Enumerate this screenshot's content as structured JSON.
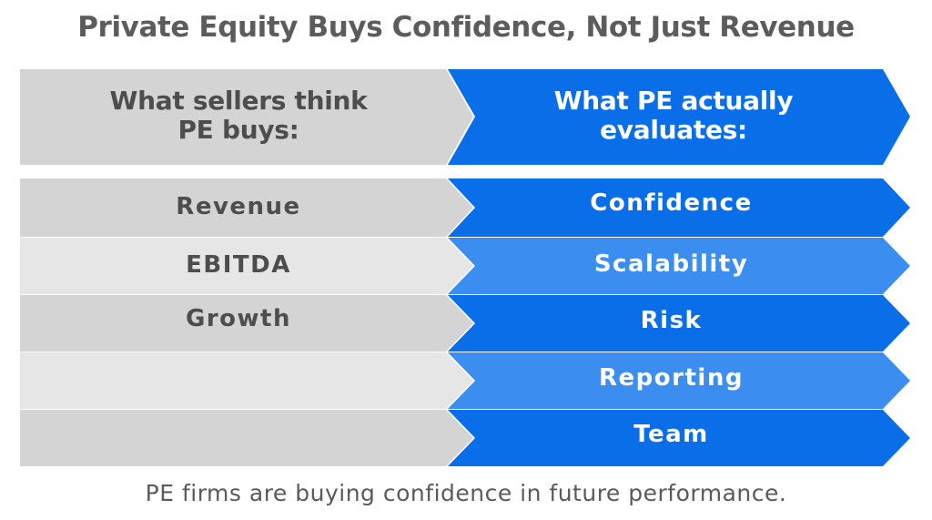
{
  "title": "Private Equity Buys Confidence, Not Just Revenue",
  "header": {
    "left_line1": "What sellers think",
    "left_line2": "PE buys:",
    "right_line1": "What PE actually",
    "right_line2": "evaluates:"
  },
  "rows": [
    {
      "left": "Revenue",
      "right": "Confidence"
    },
    {
      "left": "EBITDA",
      "right": "Scalability"
    },
    {
      "left": "Growth",
      "right": "Risk"
    },
    {
      "left": "",
      "right": "Reporting"
    },
    {
      "left": "",
      "right": "Team"
    }
  ],
  "footer": "PE firms are buying confidence in future performance.",
  "colors": {
    "title_text": "#5c5c5c",
    "left_fill_dark": "#d4d4d4",
    "left_fill_light": "#e6e6e6",
    "right_fill_dark": "#0a6ee8",
    "right_fill_light": "#3b8ef0",
    "left_text": "#4d4d4d",
    "right_text": "#ffffff"
  }
}
